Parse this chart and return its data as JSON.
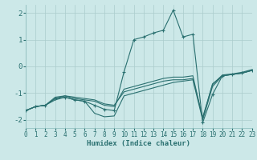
{
  "xlabel": "Humidex (Indice chaleur)",
  "bg_color": "#cce8e8",
  "grid_color": "#aacccc",
  "line_color": "#2a7070",
  "xlim": [
    0,
    23
  ],
  "ylim": [
    -2.3,
    2.3
  ],
  "yticks": [
    -2,
    -1,
    0,
    1,
    2
  ],
  "xticks": [
    0,
    1,
    2,
    3,
    4,
    5,
    6,
    7,
    8,
    9,
    10,
    11,
    12,
    13,
    14,
    15,
    16,
    17,
    18,
    19,
    20,
    21,
    22,
    23
  ],
  "lines": [
    {
      "y": [
        -1.65,
        -1.5,
        -1.45,
        -1.2,
        -1.15,
        -1.25,
        -1.3,
        -1.45,
        -1.6,
        -1.65,
        -0.2,
        1.0,
        1.1,
        1.25,
        1.35,
        2.1,
        1.1,
        1.2,
        -2.1,
        -1.05,
        -0.35,
        -0.3,
        -0.25,
        -0.15
      ],
      "marker": true
    },
    {
      "y": [
        -1.65,
        -1.5,
        -1.45,
        -1.2,
        -1.1,
        -1.2,
        -1.25,
        -1.3,
        -1.45,
        -1.5,
        -0.85,
        -0.75,
        -0.65,
        -0.55,
        -0.45,
        -0.4,
        -0.4,
        -0.35,
        -1.95,
        -0.65,
        -0.35,
        -0.3,
        -0.25,
        -0.15
      ],
      "marker": false
    },
    {
      "y": [
        -1.65,
        -1.5,
        -1.45,
        -1.15,
        -1.1,
        -1.15,
        -1.2,
        -1.25,
        -1.4,
        -1.45,
        -0.95,
        -0.85,
        -0.75,
        -0.65,
        -0.55,
        -0.5,
        -0.5,
        -0.45,
        -1.9,
        -0.68,
        -0.32,
        -0.28,
        -0.22,
        -0.12
      ],
      "marker": false
    },
    {
      "y": [
        -1.65,
        -1.5,
        -1.45,
        -1.25,
        -1.15,
        -1.25,
        -1.3,
        -1.75,
        -1.88,
        -1.85,
        -1.1,
        -1.0,
        -0.9,
        -0.8,
        -0.7,
        -0.6,
        -0.55,
        -0.5,
        -2.0,
        -0.75,
        -0.35,
        -0.3,
        -0.25,
        -0.15
      ],
      "marker": false
    }
  ]
}
